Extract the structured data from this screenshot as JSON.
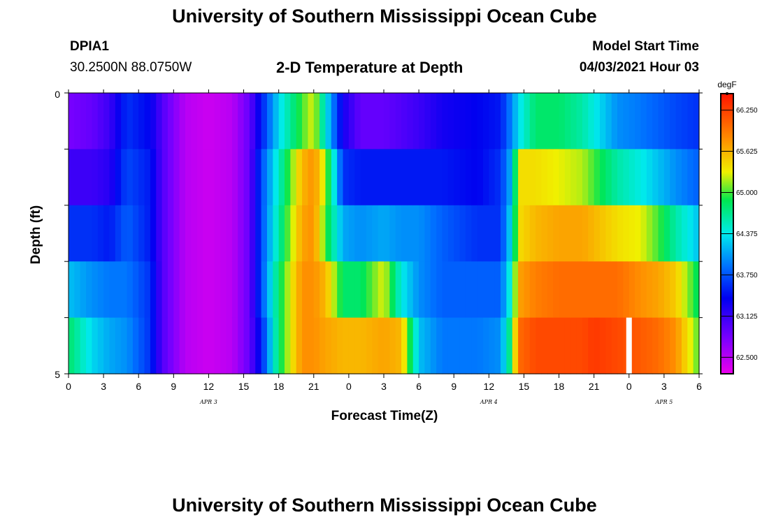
{
  "header": {
    "title": "University of Southern Mississippi Ocean Cube",
    "station": "DPIA1",
    "coords": "30.2500N  88.0750W",
    "plot_title": "2-D Temperature at Depth",
    "model_start_label": "Model Start Time",
    "model_start_value": "04/03/2021 Hour 03"
  },
  "footer": {
    "title": "University of Southern Mississippi Ocean Cube"
  },
  "chart_data": {
    "type": "heatmap",
    "title": "2-D Temperature at Depth",
    "xlabel": "Forecast Time(Z)",
    "ylabel": "Depth (ft)",
    "y_tick_labels": [
      "0",
      "5"
    ],
    "x_tick_labels": [
      "0",
      "3",
      "6",
      "9",
      "12",
      "15",
      "18",
      "21",
      "0",
      "3",
      "6",
      "9",
      "12",
      "15",
      "18",
      "21",
      "0",
      "3",
      "6"
    ],
    "date_labels": [
      {
        "label": "APR 3",
        "hour": 12
      },
      {
        "label": "APR 4",
        "hour": 36
      },
      {
        "label": "APR 5",
        "hour": 51
      }
    ],
    "x_range_hours": [
      0,
      54
    ],
    "depth_range_ft": [
      0,
      5
    ],
    "depth_layers": 5,
    "colorbar": {
      "unit": "degF",
      "range": [
        62.25,
        66.5
      ],
      "tick_values": [
        "66.250",
        "65.625",
        "65.000",
        "64.375",
        "63.750",
        "63.125",
        "62.500"
      ]
    },
    "profiles_degF": [
      {
        "h": 0,
        "v": [
          62.8,
          63.1,
          63.6,
          64.2,
          64.8
        ]
      },
      {
        "h": 2,
        "v": [
          62.9,
          63.1,
          63.6,
          64.0,
          64.3
        ]
      },
      {
        "h": 3.5,
        "v": [
          63.1,
          63.2,
          63.5,
          63.9,
          64.1
        ]
      },
      {
        "h": 5,
        "v": [
          63.6,
          63.7,
          63.8,
          63.9,
          64.0
        ]
      },
      {
        "h": 7,
        "v": [
          63.4,
          63.5,
          63.5,
          63.6,
          63.6
        ]
      },
      {
        "h": 8,
        "v": [
          63.0,
          63.0,
          63.0,
          63.0,
          63.0
        ]
      },
      {
        "h": 10,
        "v": [
          62.5,
          62.5,
          62.5,
          62.5,
          62.5
        ]
      },
      {
        "h": 12,
        "v": [
          62.4,
          62.4,
          62.4,
          62.4,
          62.4
        ]
      },
      {
        "h": 14,
        "v": [
          62.5,
          62.5,
          62.5,
          62.5,
          62.5
        ]
      },
      {
        "h": 15.5,
        "v": [
          62.9,
          62.9,
          62.9,
          62.9,
          62.9
        ]
      },
      {
        "h": 16.5,
        "v": [
          63.5,
          63.7,
          63.7,
          63.7,
          63.5
        ]
      },
      {
        "h": 18,
        "v": [
          64.3,
          64.5,
          64.6,
          64.8,
          64.8
        ]
      },
      {
        "h": 20,
        "v": [
          65.0,
          65.6,
          65.7,
          65.8,
          65.8
        ]
      },
      {
        "h": 21,
        "v": [
          65.3,
          65.8,
          65.8,
          65.8,
          65.8
        ]
      },
      {
        "h": 22,
        "v": [
          64.4,
          65.2,
          65.0,
          65.6,
          65.7
        ]
      },
      {
        "h": 23.5,
        "v": [
          63.3,
          63.6,
          64.1,
          64.8,
          65.6
        ]
      },
      {
        "h": 25,
        "v": [
          62.9,
          63.5,
          64.0,
          64.8,
          65.6
        ]
      },
      {
        "h": 27,
        "v": [
          62.9,
          63.5,
          64.1,
          65.3,
          65.7
        ]
      },
      {
        "h": 28.5,
        "v": [
          63.0,
          63.5,
          64.0,
          64.4,
          65.6
        ]
      },
      {
        "h": 30,
        "v": [
          63.1,
          63.5,
          64.0,
          64.0,
          64.2
        ]
      },
      {
        "h": 32,
        "v": [
          63.3,
          63.5,
          63.8,
          63.8,
          63.9
        ]
      },
      {
        "h": 35,
        "v": [
          63.4,
          63.4,
          63.6,
          63.8,
          63.9
        ]
      },
      {
        "h": 37,
        "v": [
          63.5,
          63.6,
          63.6,
          63.8,
          64.0
        ]
      },
      {
        "h": 38,
        "v": [
          64.0,
          64.2,
          64.4,
          64.6,
          64.9
        ]
      },
      {
        "h": 38.5,
        "v": [
          64.3,
          65.4,
          65.4,
          65.7,
          66.0
        ]
      },
      {
        "h": 40,
        "v": [
          64.8,
          65.4,
          65.6,
          65.9,
          66.2
        ]
      },
      {
        "h": 42,
        "v": [
          64.8,
          65.3,
          65.7,
          66.0,
          66.2
        ]
      },
      {
        "h": 44,
        "v": [
          64.6,
          65.2,
          65.7,
          66.0,
          66.2
        ]
      },
      {
        "h": 45,
        "v": [
          64.4,
          65.0,
          65.6,
          66.0,
          66.3
        ]
      },
      {
        "h": 47,
        "v": [
          64.0,
          64.6,
          65.4,
          66.0,
          66.2
        ]
      },
      {
        "h": 49,
        "v": [
          63.9,
          64.4,
          65.3,
          65.8,
          66.1
        ]
      },
      {
        "h": 50.5,
        "v": [
          63.8,
          64.2,
          65.0,
          65.7,
          66.0
        ]
      },
      {
        "h": 52,
        "v": [
          63.7,
          64.0,
          64.6,
          65.5,
          65.8
        ]
      },
      {
        "h": 54,
        "v": [
          63.6,
          63.8,
          64.2,
          64.8,
          65.0
        ]
      }
    ],
    "gap_hours": [
      48
    ]
  }
}
